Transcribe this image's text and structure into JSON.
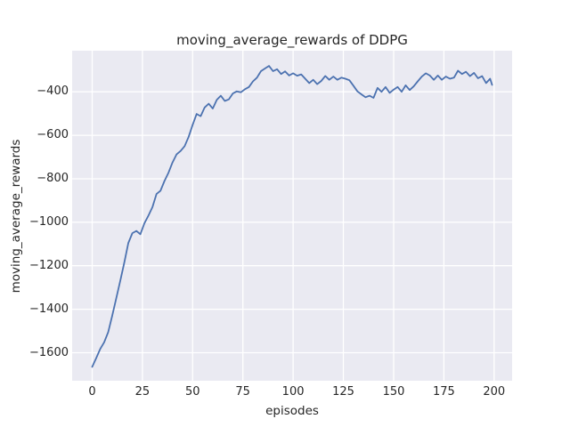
{
  "chart_data": {
    "type": "line",
    "title": "moving_average_rewards of DDPG",
    "xlabel": "episodes",
    "ylabel": "moving_average_rewards",
    "xlim": [
      -9.95,
      208.95
    ],
    "ylim": [
      -1729,
      -211
    ],
    "xticks": [
      0,
      25,
      50,
      75,
      100,
      125,
      150,
      175,
      200
    ],
    "yticks": [
      -400,
      -600,
      -800,
      -1000,
      -1200,
      -1400,
      -1600
    ],
    "grid": true,
    "legend": null,
    "series_name": "moving average reward",
    "x": [
      0,
      2,
      4,
      6,
      8,
      10,
      12,
      14,
      16,
      18,
      20,
      22,
      24,
      26,
      28,
      30,
      32,
      34,
      36,
      38,
      40,
      42,
      44,
      46,
      48,
      50,
      52,
      54,
      56,
      58,
      60,
      62,
      64,
      66,
      68,
      70,
      72,
      74,
      76,
      78,
      80,
      82,
      84,
      86,
      88,
      90,
      92,
      94,
      96,
      98,
      100,
      102,
      104,
      106,
      108,
      110,
      112,
      114,
      116,
      118,
      120,
      122,
      124,
      126,
      128,
      130,
      132,
      134,
      136,
      138,
      140,
      142,
      144,
      146,
      148,
      150,
      152,
      154,
      156,
      158,
      160,
      162,
      164,
      166,
      168,
      170,
      172,
      174,
      176,
      178,
      180,
      182,
      184,
      186,
      188,
      190,
      192,
      194,
      196,
      198,
      199
    ],
    "y": [
      -1665,
      -1625,
      -1583,
      -1552,
      -1505,
      -1430,
      -1350,
      -1270,
      -1185,
      -1095,
      -1050,
      -1040,
      -1055,
      -1005,
      -970,
      -930,
      -870,
      -855,
      -810,
      -772,
      -725,
      -688,
      -672,
      -650,
      -607,
      -552,
      -502,
      -512,
      -472,
      -455,
      -477,
      -437,
      -418,
      -442,
      -435,
      -408,
      -398,
      -402,
      -388,
      -378,
      -352,
      -335,
      -305,
      -293,
      -281,
      -305,
      -296,
      -318,
      -306,
      -325,
      -315,
      -326,
      -320,
      -340,
      -360,
      -345,
      -365,
      -350,
      -327,
      -345,
      -330,
      -345,
      -335,
      -340,
      -347,
      -372,
      -398,
      -412,
      -425,
      -418,
      -428,
      -382,
      -400,
      -378,
      -405,
      -390,
      -378,
      -400,
      -370,
      -392,
      -375,
      -352,
      -330,
      -315,
      -325,
      -345,
      -325,
      -345,
      -330,
      -340,
      -335,
      -303,
      -318,
      -308,
      -328,
      -313,
      -338,
      -328,
      -360,
      -340,
      -368
    ],
    "colors": {
      "figure_background": "#ffffff",
      "axes_background": "#eaeaf2",
      "grid": "#ffffff",
      "line": "#4c72b0",
      "text": "#262626"
    }
  }
}
